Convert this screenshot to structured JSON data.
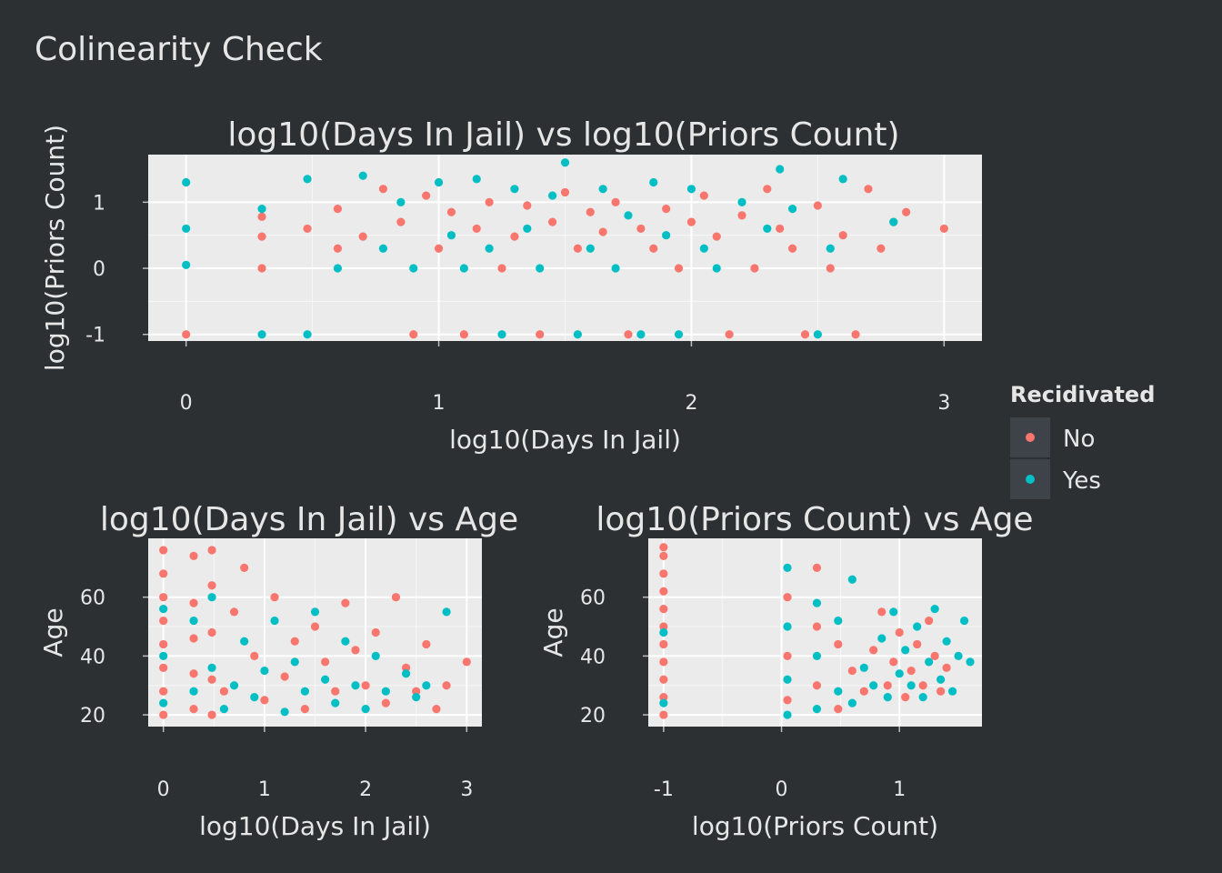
{
  "figure": {
    "title": "Colinearity Check",
    "colors": {
      "background": "#2d3032",
      "panel": "#ebebeb",
      "grid": "#ffffff",
      "text": "#e6e6e6",
      "no": "#f8766d",
      "yes": "#00bfc4"
    }
  },
  "legend": {
    "title": "Recidivated",
    "items": [
      {
        "label": "No",
        "color": "#f8766d"
      },
      {
        "label": "Yes",
        "color": "#00bfc4"
      }
    ],
    "placement": "right"
  },
  "chart_data": [
    {
      "type": "scatter",
      "title": "log10(Days In Jail) vs log10(Priors Count)",
      "xlabel": "log10(Days In Jail)",
      "ylabel": "log10(Priors Count)",
      "xlim": [
        -0.15,
        3.15
      ],
      "ylim": [
        -1.1,
        1.72
      ],
      "xticks": [
        0,
        1,
        2,
        3
      ],
      "xtick_labels": [
        "0",
        "1",
        "2",
        "3"
      ],
      "yticks": [
        -1,
        0,
        1
      ],
      "ytick_labels": [
        "-1",
        "0",
        "1"
      ],
      "grid": true,
      "series": [
        {
          "name": "No",
          "color": "#f8766d",
          "points": [
            [
              0,
              -1
            ],
            [
              0.3,
              0
            ],
            [
              0.3,
              0.48
            ],
            [
              0.3,
              0.78
            ],
            [
              0.48,
              0.6
            ],
            [
              0.6,
              0.3
            ],
            [
              0.6,
              0.9
            ],
            [
              0.7,
              0.48
            ],
            [
              0.78,
              1.2
            ],
            [
              0.85,
              0.7
            ],
            [
              0.9,
              -1
            ],
            [
              0.95,
              1.1
            ],
            [
              1.0,
              0.3
            ],
            [
              1.05,
              0.85
            ],
            [
              1.1,
              -1
            ],
            [
              1.15,
              0.6
            ],
            [
              1.2,
              1.0
            ],
            [
              1.25,
              0
            ],
            [
              1.3,
              0.48
            ],
            [
              1.35,
              0.95
            ],
            [
              1.4,
              -1
            ],
            [
              1.45,
              0.7
            ],
            [
              1.5,
              1.15
            ],
            [
              1.55,
              0.3
            ],
            [
              1.6,
              0.85
            ],
            [
              1.65,
              0.55
            ],
            [
              1.7,
              1.0
            ],
            [
              1.75,
              -1
            ],
            [
              1.8,
              0.6
            ],
            [
              1.85,
              0.3
            ],
            [
              1.9,
              0.9
            ],
            [
              1.95,
              0
            ],
            [
              2.0,
              0.7
            ],
            [
              2.05,
              1.1
            ],
            [
              2.1,
              0.48
            ],
            [
              2.15,
              -1
            ],
            [
              2.2,
              0.8
            ],
            [
              2.25,
              0
            ],
            [
              2.3,
              1.2
            ],
            [
              2.35,
              0.6
            ],
            [
              2.4,
              0.3
            ],
            [
              2.45,
              -1
            ],
            [
              2.5,
              0.95
            ],
            [
              2.55,
              0
            ],
            [
              2.6,
              0.5
            ],
            [
              2.65,
              -1
            ],
            [
              2.7,
              1.2
            ],
            [
              2.75,
              0.3
            ],
            [
              2.8,
              0.7
            ],
            [
              2.85,
              0.85
            ],
            [
              3.0,
              0.6
            ]
          ]
        },
        {
          "name": "Yes",
          "color": "#00bfc4",
          "points": [
            [
              0,
              0.05
            ],
            [
              0,
              0.6
            ],
            [
              0,
              1.3
            ],
            [
              0.3,
              -1
            ],
            [
              0.3,
              0.9
            ],
            [
              0.48,
              -1
            ],
            [
              0.48,
              1.35
            ],
            [
              0.6,
              0
            ],
            [
              0.7,
              1.4
            ],
            [
              0.78,
              0.3
            ],
            [
              0.85,
              1.0
            ],
            [
              0.9,
              0
            ],
            [
              1.0,
              1.3
            ],
            [
              1.05,
              0.5
            ],
            [
              1.1,
              0
            ],
            [
              1.15,
              1.35
            ],
            [
              1.2,
              0.3
            ],
            [
              1.25,
              -1
            ],
            [
              1.3,
              1.2
            ],
            [
              1.35,
              0.6
            ],
            [
              1.4,
              0
            ],
            [
              1.45,
              1.1
            ],
            [
              1.5,
              1.6
            ],
            [
              1.55,
              -1
            ],
            [
              1.6,
              0.3
            ],
            [
              1.65,
              1.2
            ],
            [
              1.7,
              0
            ],
            [
              1.75,
              0.8
            ],
            [
              1.8,
              -1
            ],
            [
              1.85,
              1.3
            ],
            [
              1.9,
              0.5
            ],
            [
              1.95,
              -1
            ],
            [
              2.0,
              1.2
            ],
            [
              2.05,
              0.3
            ],
            [
              2.1,
              0
            ],
            [
              2.2,
              1.0
            ],
            [
              2.3,
              0.6
            ],
            [
              2.35,
              1.5
            ],
            [
              2.4,
              0.9
            ],
            [
              2.5,
              -1
            ],
            [
              2.55,
              0.3
            ],
            [
              2.6,
              1.35
            ],
            [
              2.8,
              0.7
            ]
          ]
        }
      ]
    },
    {
      "type": "scatter",
      "title": "log10(Days In Jail) vs Age",
      "xlabel": "log10(Days In Jail)",
      "ylabel": "Age",
      "xlim": [
        -0.15,
        3.15
      ],
      "ylim": [
        16,
        80
      ],
      "xticks": [
        0,
        1,
        2,
        3
      ],
      "xtick_labels": [
        "0",
        "1",
        "2",
        "3"
      ],
      "yticks": [
        20,
        40,
        60
      ],
      "ytick_labels": [
        "20",
        "40",
        "60"
      ],
      "grid": true,
      "series": [
        {
          "name": "No",
          "color": "#f8766d",
          "points": [
            [
              0,
              20
            ],
            [
              0,
              28
            ],
            [
              0,
              36
            ],
            [
              0,
              44
            ],
            [
              0,
              52
            ],
            [
              0,
              60
            ],
            [
              0,
              68
            ],
            [
              0,
              76
            ],
            [
              0.3,
              22
            ],
            [
              0.3,
              34
            ],
            [
              0.3,
              46
            ],
            [
              0.3,
              58
            ],
            [
              0.3,
              74
            ],
            [
              0.48,
              20
            ],
            [
              0.48,
              32
            ],
            [
              0.48,
              48
            ],
            [
              0.48,
              64
            ],
            [
              0.48,
              76
            ],
            [
              0.6,
              28
            ],
            [
              0.7,
              55
            ],
            [
              0.8,
              70
            ],
            [
              0.9,
              40
            ],
            [
              1.0,
              25
            ],
            [
              1.1,
              60
            ],
            [
              1.2,
              33
            ],
            [
              1.3,
              45
            ],
            [
              1.4,
              22
            ],
            [
              1.5,
              50
            ],
            [
              1.6,
              38
            ],
            [
              1.7,
              28
            ],
            [
              1.8,
              58
            ],
            [
              1.9,
              42
            ],
            [
              2.0,
              30
            ],
            [
              2.1,
              48
            ],
            [
              2.2,
              24
            ],
            [
              2.3,
              60
            ],
            [
              2.4,
              36
            ],
            [
              2.5,
              28
            ],
            [
              2.6,
              44
            ],
            [
              2.7,
              22
            ],
            [
              2.8,
              30
            ],
            [
              3.0,
              38
            ]
          ]
        },
        {
          "name": "Yes",
          "color": "#00bfc4",
          "points": [
            [
              0,
              24
            ],
            [
              0,
              40
            ],
            [
              0,
              56
            ],
            [
              0.3,
              28
            ],
            [
              0.3,
              52
            ],
            [
              0.48,
              36
            ],
            [
              0.48,
              60
            ],
            [
              0.6,
              22
            ],
            [
              0.7,
              30
            ],
            [
              0.8,
              45
            ],
            [
              0.9,
              26
            ],
            [
              1.0,
              35
            ],
            [
              1.1,
              52
            ],
            [
              1.2,
              21
            ],
            [
              1.3,
              38
            ],
            [
              1.4,
              28
            ],
            [
              1.5,
              55
            ],
            [
              1.6,
              32
            ],
            [
              1.7,
              24
            ],
            [
              1.8,
              45
            ],
            [
              1.9,
              30
            ],
            [
              2.0,
              22
            ],
            [
              2.1,
              40
            ],
            [
              2.2,
              28
            ],
            [
              2.4,
              34
            ],
            [
              2.5,
              26
            ],
            [
              2.6,
              30
            ],
            [
              2.8,
              55
            ]
          ]
        }
      ]
    },
    {
      "type": "scatter",
      "title": "log10(Priors Count) vs Age",
      "xlabel": "log10(Priors Count)",
      "ylabel": "Age",
      "xlim": [
        -1.13,
        1.7
      ],
      "ylim": [
        16,
        80
      ],
      "xticks": [
        -1,
        0,
        1
      ],
      "xtick_labels": [
        "-1",
        "0",
        "1"
      ],
      "yticks": [
        20,
        40,
        60
      ],
      "ytick_labels": [
        "20",
        "40",
        "60"
      ],
      "grid": true,
      "series": [
        {
          "name": "No",
          "color": "#f8766d",
          "points": [
            [
              -1,
              20
            ],
            [
              -1,
              26
            ],
            [
              -1,
              32
            ],
            [
              -1,
              38
            ],
            [
              -1,
              44
            ],
            [
              -1,
              50
            ],
            [
              -1,
              56
            ],
            [
              -1,
              62
            ],
            [
              -1,
              68
            ],
            [
              -1,
              74
            ],
            [
              -1,
              77
            ],
            [
              0.05,
              25
            ],
            [
              0.05,
              40
            ],
            [
              0.05,
              60
            ],
            [
              0.3,
              30
            ],
            [
              0.3,
              50
            ],
            [
              0.3,
              70
            ],
            [
              0.48,
              22
            ],
            [
              0.48,
              44
            ],
            [
              0.6,
              35
            ],
            [
              0.7,
              28
            ],
            [
              0.78,
              42
            ],
            [
              0.85,
              55
            ],
            [
              0.9,
              30
            ],
            [
              0.95,
              38
            ],
            [
              1.0,
              48
            ],
            [
              1.05,
              26
            ],
            [
              1.1,
              35
            ],
            [
              1.15,
              44
            ],
            [
              1.2,
              30
            ],
            [
              1.25,
              52
            ],
            [
              1.3,
              40
            ],
            [
              1.35,
              28
            ],
            [
              1.4,
              36
            ]
          ]
        },
        {
          "name": "Yes",
          "color": "#00bfc4",
          "points": [
            [
              -1,
              24
            ],
            [
              -1,
              48
            ],
            [
              0.05,
              20
            ],
            [
              0.05,
              32
            ],
            [
              0.05,
              50
            ],
            [
              0.05,
              70
            ],
            [
              0.3,
              22
            ],
            [
              0.3,
              40
            ],
            [
              0.3,
              58
            ],
            [
              0.48,
              28
            ],
            [
              0.48,
              52
            ],
            [
              0.6,
              24
            ],
            [
              0.6,
              66
            ],
            [
              0.7,
              36
            ],
            [
              0.78,
              30
            ],
            [
              0.85,
              46
            ],
            [
              0.9,
              26
            ],
            [
              0.95,
              55
            ],
            [
              1.0,
              34
            ],
            [
              1.05,
              42
            ],
            [
              1.1,
              30
            ],
            [
              1.15,
              50
            ],
            [
              1.2,
              26
            ],
            [
              1.25,
              38
            ],
            [
              1.3,
              56
            ],
            [
              1.35,
              32
            ],
            [
              1.4,
              45
            ],
            [
              1.45,
              28
            ],
            [
              1.5,
              40
            ],
            [
              1.55,
              52
            ],
            [
              1.6,
              38
            ]
          ]
        }
      ]
    }
  ]
}
